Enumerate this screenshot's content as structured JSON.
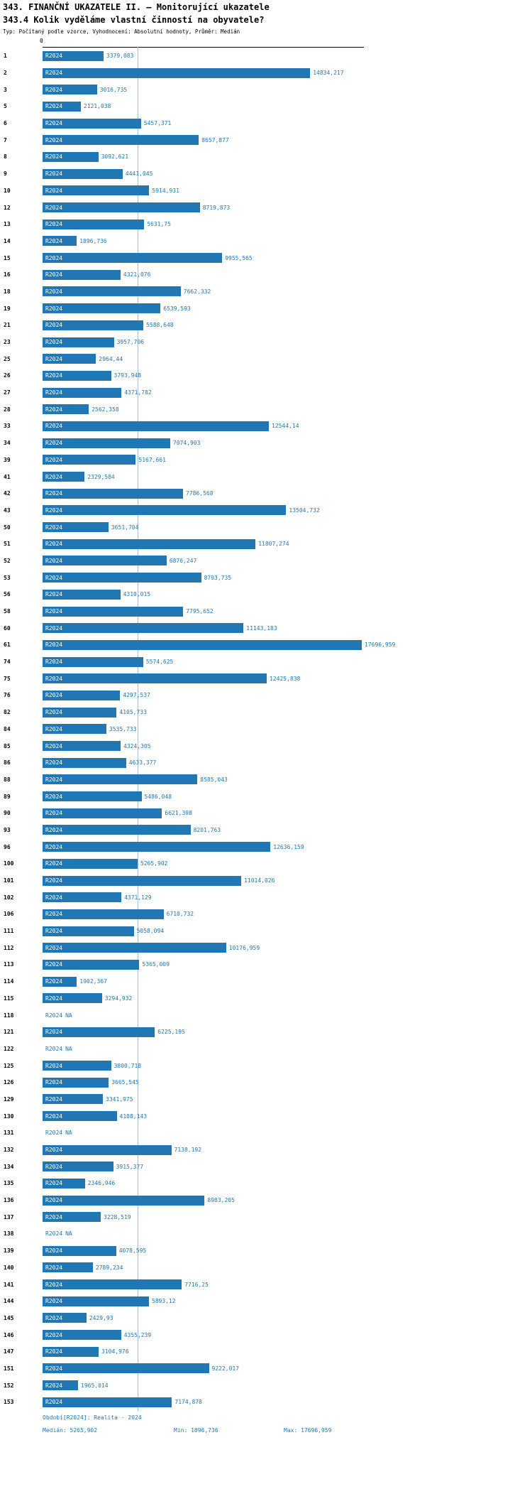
{
  "header": {
    "title": "343. FINANČNÍ UKAZATELE II. – Monitorující ukazatele",
    "subtitle": "343.4 Kolik vyděláme vlastní činností na obyvatele?",
    "meta": "Typ: Počítaný podle vzorce, Vyhodnocení: Absolutní hodnoty, Průměr: Medián"
  },
  "colors": {
    "bar": "#2077b4",
    "accent_text": "#1f77b4",
    "median_line": "#a9c0d4"
  },
  "chart_data": {
    "type": "bar",
    "orientation": "horizontal",
    "title": "343.4 Kolik vyděláme vlastní činností na obyvatele?",
    "series_label": "R2024",
    "na_label": "NA",
    "axis": {
      "zero_label": "0"
    },
    "xlim": [
      0,
      17696.959
    ],
    "median": 5265.902,
    "min": 1896.736,
    "max": 17696.959,
    "rows": [
      {
        "id": "1",
        "value": 3379.083,
        "label": "3379,083"
      },
      {
        "id": "2",
        "value": 14834.217,
        "label": "14834,217"
      },
      {
        "id": "3",
        "value": 3016.735,
        "label": "3016,735"
      },
      {
        "id": "5",
        "value": 2121.038,
        "label": "2121,038"
      },
      {
        "id": "6",
        "value": 5457.371,
        "label": "5457,371"
      },
      {
        "id": "7",
        "value": 8657.877,
        "label": "8657,877"
      },
      {
        "id": "8",
        "value": 3092.621,
        "label": "3092,621"
      },
      {
        "id": "9",
        "value": 4441.045,
        "label": "4441,045"
      },
      {
        "id": "10",
        "value": 5914.931,
        "label": "5914,931"
      },
      {
        "id": "12",
        "value": 8719.873,
        "label": "8719,873"
      },
      {
        "id": "13",
        "value": 5631.75,
        "label": "5631,75"
      },
      {
        "id": "14",
        "value": 1896.736,
        "label": "1896,736"
      },
      {
        "id": "15",
        "value": 9955.565,
        "label": "9955,565"
      },
      {
        "id": "16",
        "value": 4321.076,
        "label": "4321,076"
      },
      {
        "id": "18",
        "value": 7662.332,
        "label": "7662,332"
      },
      {
        "id": "19",
        "value": 6539.593,
        "label": "6539,593"
      },
      {
        "id": "21",
        "value": 5588.648,
        "label": "5588,648"
      },
      {
        "id": "23",
        "value": 3957.706,
        "label": "3957,706"
      },
      {
        "id": "25",
        "value": 2964.44,
        "label": "2964,44"
      },
      {
        "id": "26",
        "value": 3793.948,
        "label": "3793,948"
      },
      {
        "id": "27",
        "value": 4371.782,
        "label": "4371,782"
      },
      {
        "id": "28",
        "value": 2562.358,
        "label": "2562,358"
      },
      {
        "id": "33",
        "value": 12544.14,
        "label": "12544,14"
      },
      {
        "id": "34",
        "value": 7074.903,
        "label": "7074,903"
      },
      {
        "id": "39",
        "value": 5167.661,
        "label": "5167,661"
      },
      {
        "id": "41",
        "value": 2329.584,
        "label": "2329,584"
      },
      {
        "id": "42",
        "value": 7786.568,
        "label": "7786,568"
      },
      {
        "id": "43",
        "value": 13504.732,
        "label": "13504,732"
      },
      {
        "id": "50",
        "value": 3651.704,
        "label": "3651,704"
      },
      {
        "id": "51",
        "value": 11807.274,
        "label": "11807,274"
      },
      {
        "id": "52",
        "value": 6876.247,
        "label": "6876,247"
      },
      {
        "id": "53",
        "value": 8793.735,
        "label": "8793,735"
      },
      {
        "id": "56",
        "value": 4310.015,
        "label": "4310,015"
      },
      {
        "id": "58",
        "value": 7795.652,
        "label": "7795,652"
      },
      {
        "id": "60",
        "value": 11143.183,
        "label": "11143,183"
      },
      {
        "id": "61",
        "value": 17696.959,
        "label": "17696,959"
      },
      {
        "id": "74",
        "value": 5574.625,
        "label": "5574,625"
      },
      {
        "id": "75",
        "value": 12425.838,
        "label": "12425,838"
      },
      {
        "id": "76",
        "value": 4297.537,
        "label": "4297,537"
      },
      {
        "id": "82",
        "value": 4105.733,
        "label": "4105,733"
      },
      {
        "id": "84",
        "value": 3535.733,
        "label": "3535,733"
      },
      {
        "id": "85",
        "value": 4324.305,
        "label": "4324,305"
      },
      {
        "id": "86",
        "value": 4633.377,
        "label": "4633,377"
      },
      {
        "id": "88",
        "value": 8585.043,
        "label": "8585,043"
      },
      {
        "id": "89",
        "value": 5486.048,
        "label": "5486,048"
      },
      {
        "id": "90",
        "value": 6621.398,
        "label": "6621,398"
      },
      {
        "id": "93",
        "value": 8201.763,
        "label": "8201,763"
      },
      {
        "id": "96",
        "value": 12636.159,
        "label": "12636,159"
      },
      {
        "id": "100",
        "value": 5265.902,
        "label": "5265,902"
      },
      {
        "id": "101",
        "value": 11014.026,
        "label": "11014,026"
      },
      {
        "id": "102",
        "value": 4371.129,
        "label": "4371,129"
      },
      {
        "id": "106",
        "value": 6710.732,
        "label": "6710,732"
      },
      {
        "id": "111",
        "value": 5058.094,
        "label": "5058,094"
      },
      {
        "id": "112",
        "value": 10176.959,
        "label": "10176,959"
      },
      {
        "id": "113",
        "value": 5365.009,
        "label": "5365,009"
      },
      {
        "id": "114",
        "value": 1902.367,
        "label": "1902,367"
      },
      {
        "id": "115",
        "value": 3294.932,
        "label": "3294,932"
      },
      {
        "id": "118",
        "value": null,
        "label": "NA"
      },
      {
        "id": "121",
        "value": 6225.195,
        "label": "6225,195"
      },
      {
        "id": "122",
        "value": null,
        "label": "NA"
      },
      {
        "id": "125",
        "value": 3800.718,
        "label": "3800,718"
      },
      {
        "id": "126",
        "value": 3665.545,
        "label": "3665,545"
      },
      {
        "id": "129",
        "value": 3341.975,
        "label": "3341,975"
      },
      {
        "id": "130",
        "value": 4108.143,
        "label": "4108,143"
      },
      {
        "id": "131",
        "value": null,
        "label": "NA"
      },
      {
        "id": "132",
        "value": 7138.192,
        "label": "7138,192"
      },
      {
        "id": "134",
        "value": 3915.377,
        "label": "3915,377"
      },
      {
        "id": "135",
        "value": 2346.946,
        "label": "2346,946"
      },
      {
        "id": "136",
        "value": 8983.205,
        "label": "8983,205"
      },
      {
        "id": "137",
        "value": 3228.519,
        "label": "3228,519"
      },
      {
        "id": "138",
        "value": null,
        "label": "NA"
      },
      {
        "id": "139",
        "value": 4078.595,
        "label": "4078,595"
      },
      {
        "id": "140",
        "value": 2789.234,
        "label": "2789,234"
      },
      {
        "id": "141",
        "value": 7716.25,
        "label": "7716,25"
      },
      {
        "id": "144",
        "value": 5893.12,
        "label": "5893,12"
      },
      {
        "id": "145",
        "value": 2429.93,
        "label": "2429,93"
      },
      {
        "id": "146",
        "value": 4355.239,
        "label": "4355,239"
      },
      {
        "id": "147",
        "value": 3104.976,
        "label": "3104,976"
      },
      {
        "id": "151",
        "value": 9222.017,
        "label": "9222,017"
      },
      {
        "id": "152",
        "value": 1965.014,
        "label": "1965,014"
      },
      {
        "id": "153",
        "value": 7174.878,
        "label": "7174,878"
      }
    ]
  },
  "footer": {
    "period": "Období[R2024]: Realita - 2024",
    "median": "Medián: 5265,902",
    "min": "Min: 1896,736",
    "max": "Max: 17696,959"
  }
}
